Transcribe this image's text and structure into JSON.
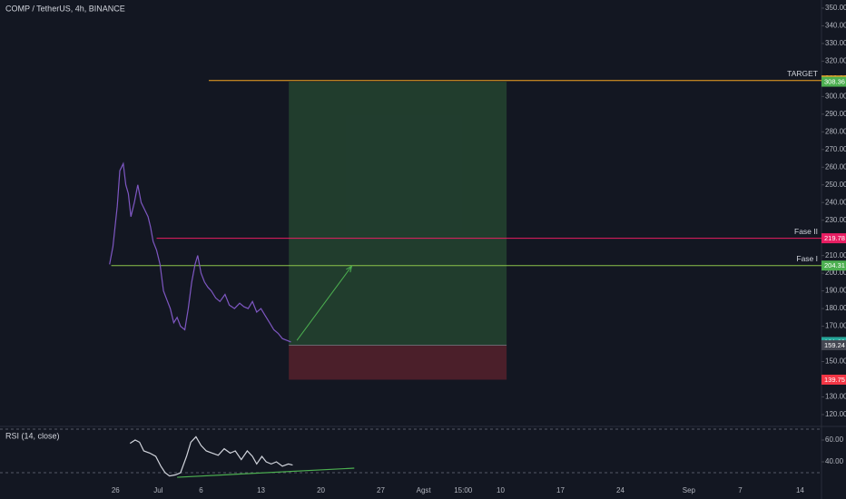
{
  "chart_data": [
    {
      "type": "line",
      "title": "COMP / TetherUS, 4h, BINANCE",
      "color": "#7e57c2",
      "x": [
        -0.7,
        -0.3,
        0.2,
        0.5,
        0.9,
        1.2,
        1.5,
        1.8,
        2.2,
        2.6,
        3.0,
        3.4,
        3.8,
        4.1,
        4.4,
        4.8,
        5.2,
        5.6,
        6.0,
        6.4,
        6.8,
        7.2,
        7.6,
        8.1,
        8.5,
        8.9,
        9.3,
        9.6,
        10.0,
        10.4,
        10.8,
        11.2,
        11.7,
        12.2,
        12.8,
        13.3,
        13.9,
        14.5,
        15.0,
        15.5,
        16.0,
        16.5,
        17.0,
        17.5,
        18.0,
        18.5,
        19.0,
        19.5,
        20.0,
        20.5
      ],
      "values": [
        205,
        215,
        238,
        258,
        262,
        250,
        245,
        232,
        240,
        250,
        240,
        236,
        232,
        226,
        218,
        213,
        205,
        190,
        185,
        180,
        172,
        175,
        170,
        168,
        180,
        195,
        205,
        210,
        200,
        195,
        192,
        190,
        186,
        184,
        188,
        182,
        180,
        183,
        181,
        180,
        184,
        178,
        180,
        176,
        172,
        168,
        166,
        163,
        162,
        161.09
      ],
      "xlim": [
        -13.5,
        82.5
      ],
      "xticks": [
        {
          "value": 0,
          "label": "26"
        },
        {
          "value": 5,
          "label": "Jul"
        },
        {
          "value": 10,
          "label": "6"
        },
        {
          "value": 17,
          "label": "13"
        },
        {
          "value": 24,
          "label": "20"
        },
        {
          "value": 31,
          "label": "27"
        },
        {
          "value": 36,
          "label": "Agst"
        },
        {
          "value": 40.625,
          "label": "15:00"
        },
        {
          "value": 45,
          "label": "10"
        },
        {
          "value": 52,
          "label": "17"
        },
        {
          "value": 59,
          "label": "24"
        },
        {
          "value": 67,
          "label": "Sep"
        },
        {
          "value": 73,
          "label": "7"
        },
        {
          "value": 80,
          "label": "14"
        }
      ],
      "ylim": [
        113.3,
        354.6
      ],
      "yticks": [
        {
          "value": 120,
          "label": "120.00"
        },
        {
          "value": 130,
          "label": "130.00"
        },
        {
          "value": 140,
          "label": "140.00"
        },
        {
          "value": 150,
          "label": "150.00"
        },
        {
          "value": 160,
          "label": "160.00"
        },
        {
          "value": 170,
          "label": "170.00"
        },
        {
          "value": 180,
          "label": "180.00"
        },
        {
          "value": 190,
          "label": "190.00"
        },
        {
          "value": 200,
          "label": "200.00"
        },
        {
          "value": 210,
          "label": "210.00"
        },
        {
          "value": 220,
          "label": "220.00"
        },
        {
          "value": 230,
          "label": "230.00"
        },
        {
          "value": 240,
          "label": "240.00"
        },
        {
          "value": 250,
          "label": "250.00"
        },
        {
          "value": 260,
          "label": "260.00"
        },
        {
          "value": 270,
          "label": "270.00"
        },
        {
          "value": 280,
          "label": "280.00"
        },
        {
          "value": 290,
          "label": "290.00"
        },
        {
          "value": 300,
          "label": "300.00"
        },
        {
          "value": 310,
          "label": "310.00"
        },
        {
          "value": 320,
          "label": "320.00"
        },
        {
          "value": 330,
          "label": "330.00"
        },
        {
          "value": 340,
          "label": "340.00"
        },
        {
          "value": 350,
          "label": "350.00"
        }
      ],
      "grid": false,
      "levels": [
        {
          "name": "TARGET",
          "value": 309.05,
          "x_start": 10.9,
          "color": "#f5a623"
        },
        {
          "name": "Fase II",
          "value": 219.78,
          "x_start": 4.8,
          "color": "#e91e63"
        },
        {
          "name": "Fase I",
          "value": 204.31,
          "x_start": -0.5,
          "color": "#8bc34a"
        }
      ],
      "position": {
        "x": [
          20.25,
          45.7
        ],
        "entry": 159.24,
        "target": 308.36,
        "stop": 139.75
      },
      "arrow": {
        "x": [
          21.2,
          27.6
        ],
        "y": [
          162,
          204
        ],
        "color": "#4caf50"
      },
      "price_tags": [
        {
          "value": 309.05,
          "color": "#f5a623"
        },
        {
          "value": 308.36,
          "color": "#4caf50"
        },
        {
          "value": 219.78,
          "color": "#e91e63"
        },
        {
          "value": 204.31,
          "color": "#4caf50"
        },
        {
          "value": 161.09,
          "color": "#26a69a"
        },
        {
          "value": 159.24,
          "color": "#434651"
        },
        {
          "value": 139.75,
          "color": "#f23645"
        }
      ]
    },
    {
      "type": "line",
      "title": "RSI (14, close)",
      "color": "#d1d4dc",
      "x": [
        1.7,
        2.3,
        2.8,
        3.3,
        4.0,
        4.7,
        5.3,
        5.8,
        6.3,
        7.0,
        7.6,
        8.3,
        8.8,
        9.4,
        10.0,
        10.6,
        11.3,
        12.0,
        12.7,
        13.4,
        14.0,
        14.7,
        15.4,
        16.0,
        16.5,
        17.1,
        17.6,
        18.2,
        18.8,
        19.5,
        20.2,
        20.7
      ],
      "values": [
        57,
        60,
        58,
        50,
        48,
        45,
        36,
        30,
        27,
        28,
        30,
        45,
        58,
        63,
        55,
        50,
        48,
        46,
        52,
        48,
        50,
        42,
        50,
        45,
        38,
        45,
        40,
        38,
        40,
        36,
        38,
        37
      ],
      "xlim": [
        -13.5,
        82.5
      ],
      "ylim": [
        14.2,
        72.5
      ],
      "yticks": [
        {
          "value": 40,
          "label": "40.00"
        },
        {
          "value": 60,
          "label": "60.00"
        }
      ],
      "bands": [
        30,
        70
      ],
      "trend_line": {
        "x": [
          7.2,
          27.9
        ],
        "y": [
          25.8,
          34.2
        ],
        "color": "#4caf50"
      }
    }
  ]
}
